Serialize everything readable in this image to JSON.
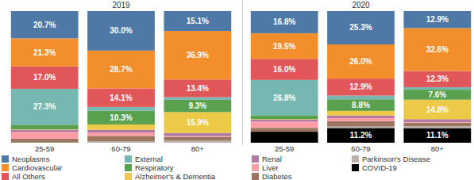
{
  "chart_data": [
    {
      "type": "bar",
      "title": "2019",
      "stacked": true,
      "data_labels": true,
      "tick_labels": "x",
      "categories": [
        "25-59",
        "60-79",
        "80+"
      ],
      "ylim": [
        0,
        100
      ],
      "series": [
        {
          "name": "Neoplasms",
          "color": "#4e79a7",
          "values": [
            20.7,
            30.0,
            15.1
          ],
          "value_labels": [
            "20.7%",
            "30.0%",
            "15.1%"
          ]
        },
        {
          "name": "Cardiovascular",
          "color": "#f28e2b",
          "values": [
            21.3,
            28.7,
            36.9
          ],
          "value_labels": [
            "21.3%",
            "28.7%",
            "36.9%"
          ]
        },
        {
          "name": "All Others",
          "color": "#e15759",
          "values": [
            17.0,
            14.1,
            13.4
          ],
          "value_labels": [
            "17.0%",
            "14.1%",
            "13.4%"
          ]
        },
        {
          "name": "External",
          "color": "#76b7b2",
          "values": [
            27.3,
            3.0,
            2.0
          ],
          "value_labels": [
            "27.3%",
            null,
            null
          ]
        },
        {
          "name": "Respiratory",
          "color": "#59a14f",
          "values": [
            3.5,
            10.3,
            9.3
          ],
          "value_labels": [
            null,
            "10.3%",
            "9.3%"
          ]
        },
        {
          "name": "Alzheimer's & Dementia",
          "color": "#edc948",
          "values": [
            0.3,
            4.0,
            15.9
          ],
          "value_labels": [
            null,
            null,
            "15.9%"
          ]
        },
        {
          "name": "Renal",
          "color": "#b07aa1",
          "values": [
            1.8,
            2.2,
            2.4
          ]
        },
        {
          "name": "Liver",
          "color": "#ff9da7",
          "values": [
            5.0,
            2.5,
            0.6
          ]
        },
        {
          "name": "Diabetes",
          "color": "#9c755f",
          "values": [
            3.0,
            4.0,
            2.8
          ]
        },
        {
          "name": "Parkinson's Disease",
          "color": "#bab0ac",
          "values": [
            0.1,
            1.2,
            1.6
          ]
        }
      ]
    },
    {
      "type": "bar",
      "title": "2020",
      "stacked": true,
      "data_labels": true,
      "tick_labels": "x",
      "categories": [
        "25-59",
        "60-79",
        "80+"
      ],
      "ylim": [
        0,
        100
      ],
      "series": [
        {
          "name": "Neoplasms",
          "color": "#4e79a7",
          "values": [
            16.8,
            25.3,
            12.9
          ],
          "value_labels": [
            "16.8%",
            "25.3%",
            "12.9%"
          ]
        },
        {
          "name": "Cardiovascular",
          "color": "#f28e2b",
          "values": [
            19.5,
            26.0,
            32.6
          ],
          "value_labels": [
            "19.5%",
            "26.0%",
            "32.6%"
          ]
        },
        {
          "name": "All Others",
          "color": "#e15759",
          "values": [
            16.0,
            12.9,
            12.3
          ],
          "value_labels": [
            "16.0%",
            "12.9%",
            "12.3%"
          ]
        },
        {
          "name": "External",
          "color": "#76b7b2",
          "values": [
            26.8,
            2.8,
            1.9
          ],
          "value_labels": [
            "26.8%",
            null,
            null
          ]
        },
        {
          "name": "Respiratory",
          "color": "#59a14f",
          "values": [
            3.0,
            8.8,
            7.6
          ],
          "value_labels": [
            null,
            "8.8%",
            "7.6%"
          ]
        },
        {
          "name": "Alzheimer's & Dementia",
          "color": "#edc948",
          "values": [
            0.3,
            3.5,
            14.8
          ],
          "value_labels": [
            null,
            null,
            "14.8%"
          ]
        },
        {
          "name": "Renal",
          "color": "#b07aa1",
          "values": [
            1.5,
            2.0,
            2.2
          ]
        },
        {
          "name": "Liver",
          "color": "#ff9da7",
          "values": [
            4.8,
            2.3,
            0.5
          ]
        },
        {
          "name": "Diabetes",
          "color": "#9c755f",
          "values": [
            2.8,
            4.1,
            2.6
          ]
        },
        {
          "name": "Parkinson's Disease",
          "color": "#bab0ac",
          "values": [
            0.1,
            1.1,
            1.5
          ]
        },
        {
          "name": "COVID-19",
          "color": "#000000",
          "values": [
            8.4,
            11.2,
            11.1
          ],
          "value_labels": [
            null,
            "11.2%",
            "11.1%"
          ]
        }
      ]
    }
  ]
}
